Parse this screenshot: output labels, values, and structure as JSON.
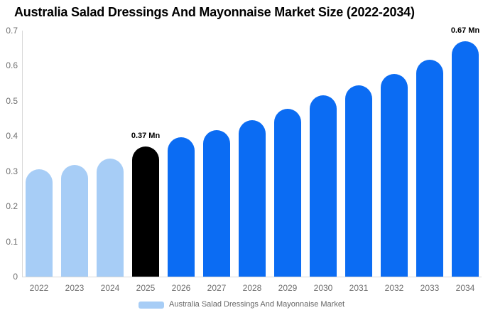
{
  "title": "Australia Salad Dressings And Mayonnaise Market Size (2022-2034)",
  "chart_data": {
    "type": "bar",
    "title": "Australia Salad Dressings And Mayonnaise Market Size (2022-2034)",
    "xlabel": "",
    "ylabel": "",
    "unit": "Mn",
    "categories": [
      "2022",
      "2023",
      "2024",
      "2025",
      "2026",
      "2027",
      "2028",
      "2029",
      "2030",
      "2031",
      "2032",
      "2033",
      "2034"
    ],
    "values": [
      0.305,
      0.318,
      0.335,
      0.37,
      0.397,
      0.417,
      0.445,
      0.477,
      0.515,
      0.545,
      0.577,
      0.617,
      0.67
    ],
    "bar_colors": [
      "#a7cdf6",
      "#a7cdf6",
      "#a7cdf6",
      "#000000",
      "#0b6cf3",
      "#0b6cf3",
      "#0b6cf3",
      "#0b6cf3",
      "#0b6cf3",
      "#0b6cf3",
      "#0b6cf3",
      "#0b6cf3",
      "#0b6cf3"
    ],
    "annotations": [
      {
        "category": "2025",
        "text": "0.37 Mn"
      },
      {
        "category": "2034",
        "text": "0.67 Mn"
      }
    ],
    "ylim": [
      0,
      0.7
    ],
    "yticks": [
      "0",
      "0.1",
      "0.2",
      "0.3",
      "0.4",
      "0.5",
      "0.6",
      "0.7"
    ],
    "grid": false,
    "legend_position": "bottom-center",
    "legend": [
      {
        "label": "Australia Salad Dressings And Mayonnaise Market",
        "color": "#a7cdf6"
      }
    ]
  },
  "colors": {
    "historical_bar": "#a7cdf6",
    "highlight_bar": "#000000",
    "forecast_bar": "#0b6cf3",
    "axis_line": "#d8d8d8",
    "tick_text": "#6f6f6f",
    "legend_text": "#666666",
    "title_text": "#000000",
    "background": "#ffffff"
  }
}
